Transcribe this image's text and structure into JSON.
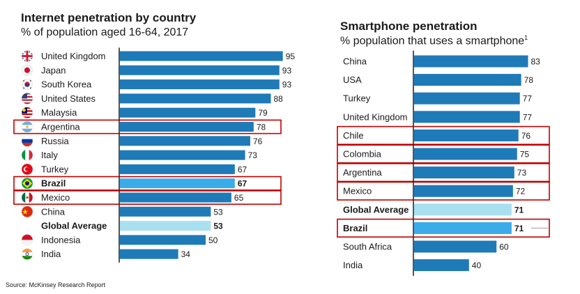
{
  "colors": {
    "bar": "#1f7ab8",
    "brazil_bar": "#3aacea",
    "global_bar": "#a8e0f0",
    "highlight_box": "#c00000",
    "axis": "#2b2b2b"
  },
  "source": "Source: McKinsey Research Report",
  "chart_data": [
    {
      "type": "bar",
      "orientation": "horizontal",
      "title": "Internet penetration by country",
      "subtitle": "% of population aged 16-64, 2017",
      "categories": [
        "United Kingdom",
        "Japan",
        "South Korea",
        "United States",
        "Malaysia",
        "Argentina",
        "Russia",
        "Italy",
        "Turkey",
        "Brazil",
        "Mexico",
        "China",
        "Global Average",
        "Indonesia",
        "India"
      ],
      "values": [
        95,
        93,
        93,
        88,
        79,
        78,
        76,
        73,
        67,
        67,
        65,
        53,
        53,
        50,
        34
      ],
      "flags": [
        "flag-uk-icon",
        "flag-japan-icon",
        "flag-south-korea-icon",
        "flag-usa-icon",
        "flag-malaysia-icon",
        "flag-argentina-icon",
        "flag-russia-icon",
        "flag-italy-icon",
        "flag-turkey-icon",
        "flag-brazil-icon",
        "flag-mexico-icon",
        "flag-china-icon",
        "",
        "flag-indonesia-icon",
        "flag-india-icon"
      ],
      "emphasis": [
        "",
        "",
        "",
        "",
        "",
        "",
        "",
        "",
        "",
        "brazil",
        "",
        "",
        "global",
        "",
        ""
      ],
      "highlighted": [
        "Argentina",
        "Brazil",
        "Mexico"
      ],
      "xlim": [
        0,
        100
      ]
    },
    {
      "type": "bar",
      "orientation": "horizontal",
      "title": "Smartphone penetration",
      "subtitle": "% population that uses a smartphone",
      "subtitle_footnote": "1",
      "categories": [
        "China",
        "USA",
        "Turkey",
        "United Kingdom",
        "Chile",
        "Colombia",
        "Argentina",
        "Mexico",
        "Global Average",
        "Brazil",
        "South Africa",
        "India"
      ],
      "values": [
        83,
        78,
        77,
        77,
        76,
        75,
        73,
        72,
        71,
        71,
        60,
        40
      ],
      "emphasis": [
        "",
        "",
        "",
        "",
        "",
        "",
        "",
        "",
        "global",
        "brazil",
        "",
        ""
      ],
      "highlighted": [
        "Chile",
        "Colombia",
        "Argentina",
        "Mexico",
        "Brazil"
      ],
      "xlim": [
        0,
        100
      ]
    }
  ]
}
